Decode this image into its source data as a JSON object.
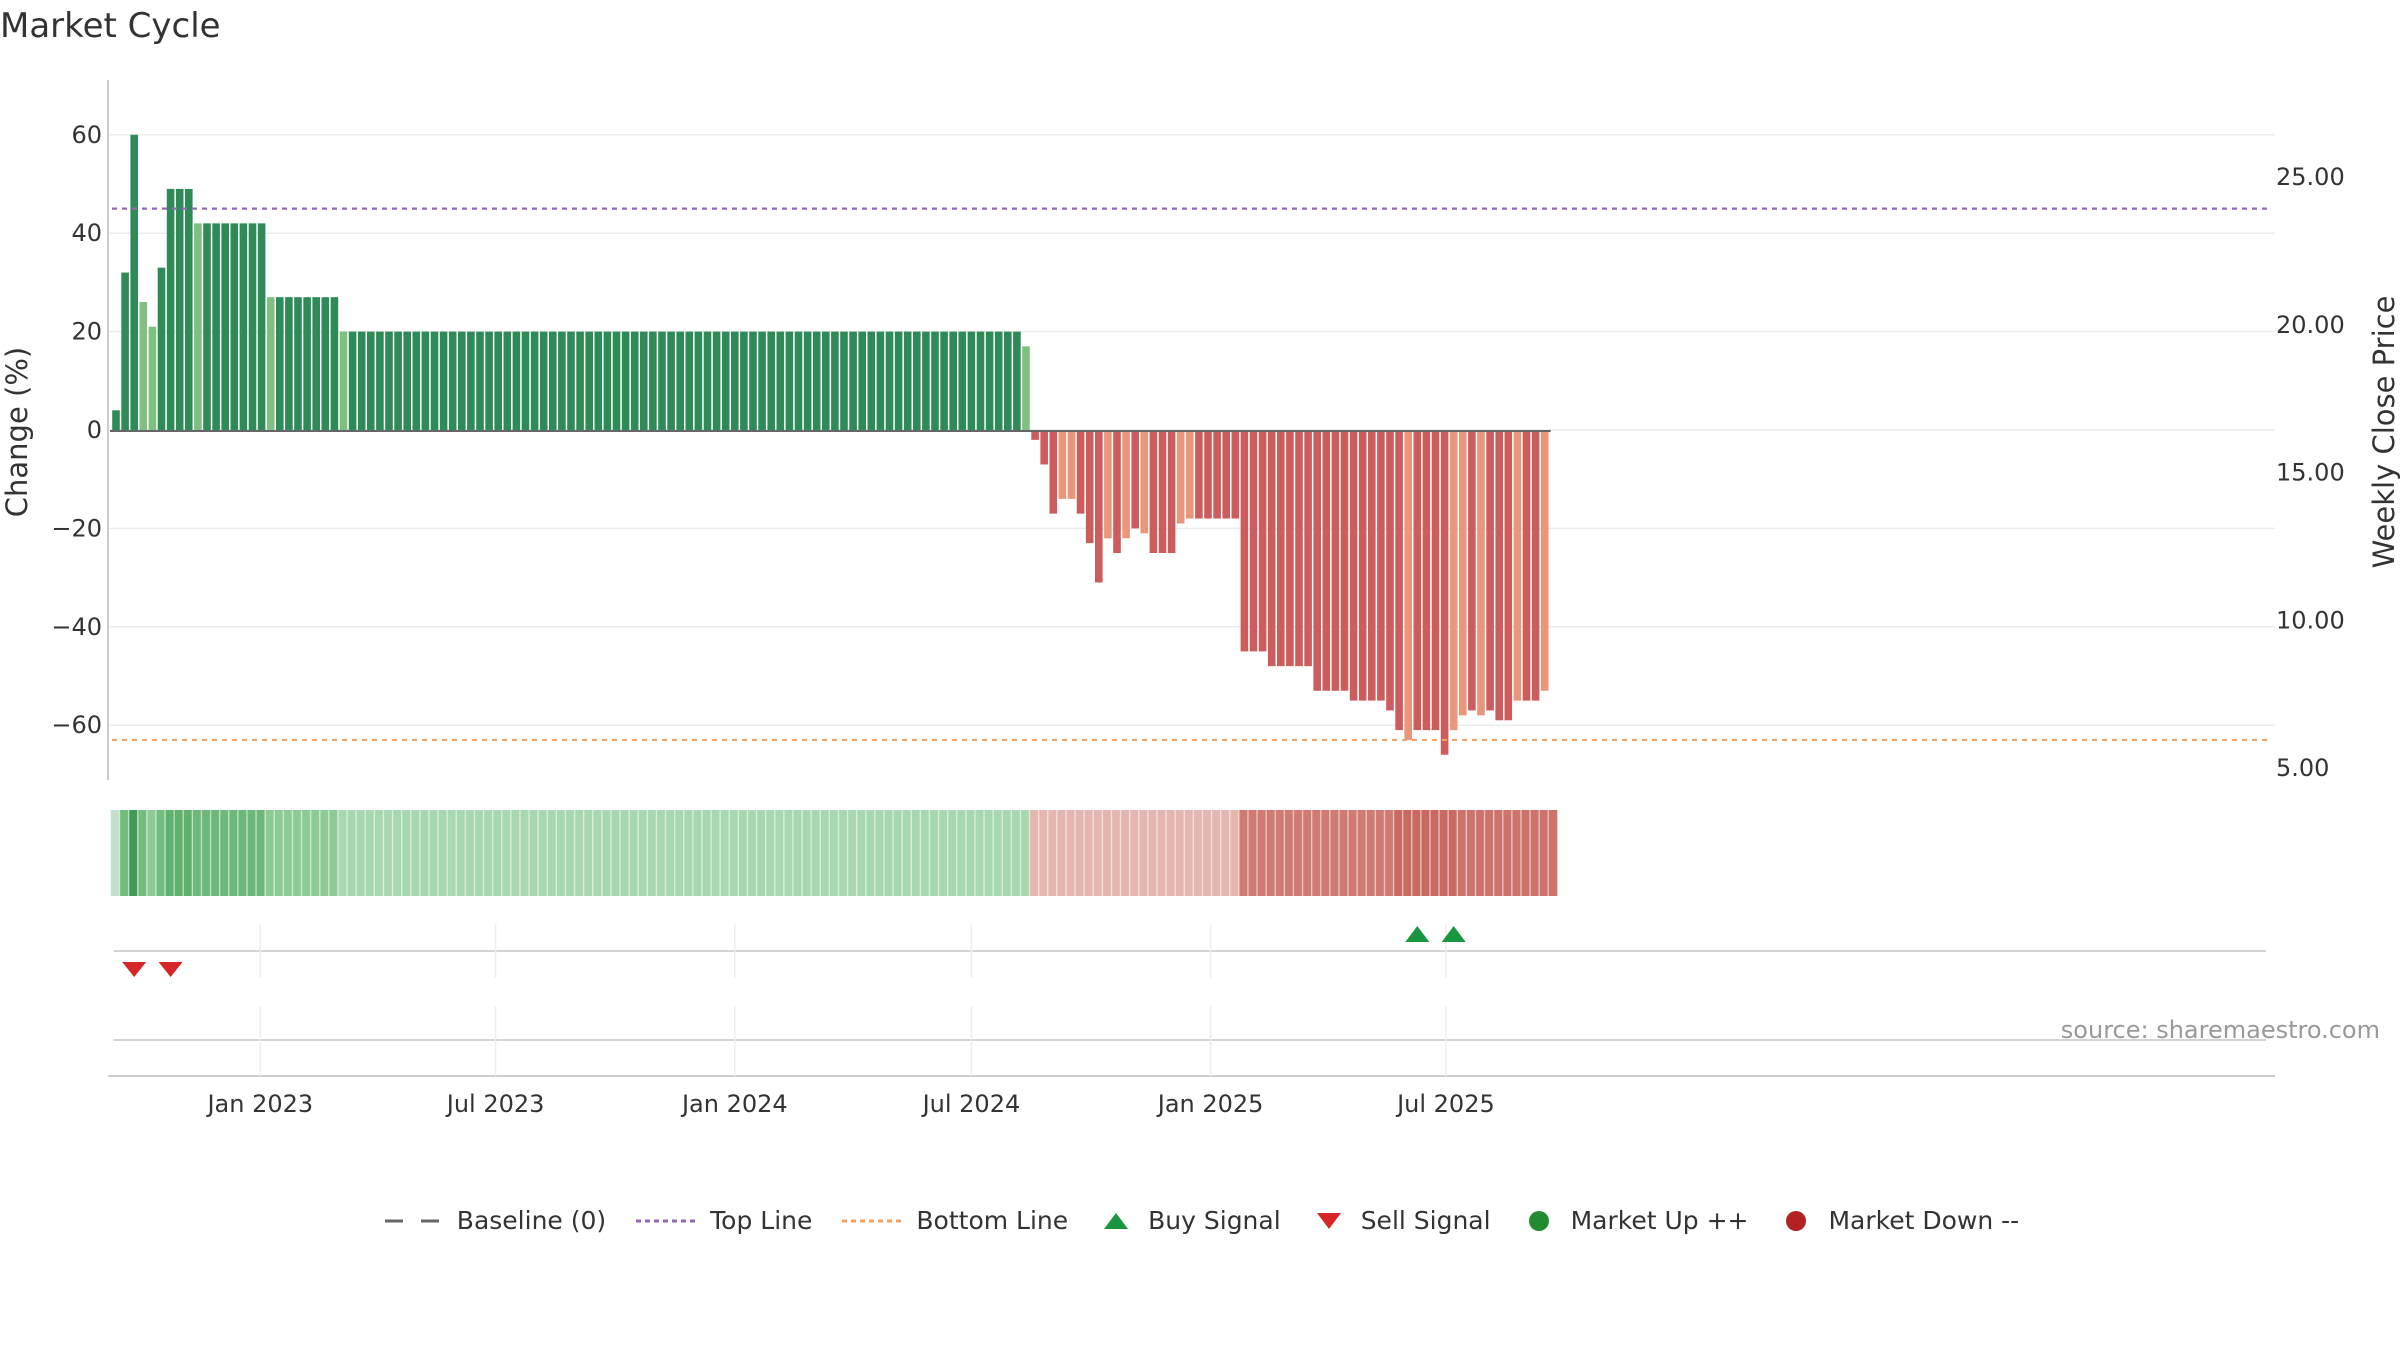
{
  "chart_data": {
    "type": "bar",
    "title": "Market Cycle",
    "ylabel_left": "Change (%)",
    "ylabel_right": "Weekly Close Price",
    "ylim": [
      -72,
      72
    ],
    "yticks_left": [
      {
        "v": 60,
        "label": "60"
      },
      {
        "v": 40,
        "label": "40"
      },
      {
        "v": 20,
        "label": "20"
      },
      {
        "v": 0,
        "label": "0"
      },
      {
        "v": -20,
        "label": "−20"
      },
      {
        "v": -40,
        "label": "−40"
      },
      {
        "v": -60,
        "label": "−60"
      }
    ],
    "ylim_right": [
      3.5,
      28.5
    ],
    "yticks_right": [
      {
        "v": 25,
        "label": "25.00"
      },
      {
        "v": 20,
        "label": "20.00"
      },
      {
        "v": 15,
        "label": "15.00"
      },
      {
        "v": 10,
        "label": "10.00"
      },
      {
        "v": 5,
        "label": "5.00"
      }
    ],
    "top_line": 45,
    "bottom_line": -63,
    "x_start": "2022-09-12",
    "x_end": "2025-09-08",
    "xticks": [
      {
        "date": "2023-01-01",
        "label": "Jan 2023"
      },
      {
        "date": "2023-07-01",
        "label": "Jul 2023"
      },
      {
        "date": "2024-01-01",
        "label": "Jan 2024"
      },
      {
        "date": "2024-07-01",
        "label": "Jul 2024"
      },
      {
        "date": "2025-01-01",
        "label": "Jan 2025"
      },
      {
        "date": "2025-07-01",
        "label": "Jul 2025"
      }
    ],
    "start_date": "2022-09-12",
    "values": [
      4,
      32,
      60,
      26,
      21,
      33,
      49,
      49,
      49,
      42,
      42,
      42,
      42,
      42,
      42,
      42,
      42,
      27,
      27,
      27,
      27,
      27,
      27,
      27,
      27,
      20,
      20,
      20,
      20,
      20,
      20,
      20,
      20,
      20,
      20,
      20,
      20,
      20,
      20,
      20,
      20,
      20,
      20,
      20,
      20,
      20,
      20,
      20,
      20,
      20,
      20,
      20,
      20,
      20,
      20,
      20,
      20,
      20,
      20,
      20,
      20,
      20,
      20,
      20,
      20,
      20,
      20,
      20,
      20,
      20,
      20,
      20,
      20,
      20,
      20,
      20,
      20,
      20,
      20,
      20,
      20,
      20,
      20,
      20,
      20,
      20,
      20,
      20,
      20,
      20,
      20,
      20,
      20,
      20,
      20,
      20,
      20,
      20,
      20,
      20,
      17,
      -2,
      -7,
      -17,
      -14,
      -14,
      -17,
      -23,
      -31,
      -22,
      -25,
      -22,
      -20,
      -21,
      -25,
      -25,
      -25,
      -19,
      -18,
      -18,
      -18,
      -18,
      -18,
      -18,
      -45,
      -45,
      -45,
      -48,
      -48,
      -48,
      -48,
      -48,
      -53,
      -53,
      -53,
      -53,
      -55,
      -55,
      -55,
      -55,
      -57,
      -61,
      -63,
      -61,
      -61,
      -61,
      -66,
      -61,
      -58,
      -57,
      -58,
      -57,
      -59,
      -59,
      -55,
      -55,
      -55,
      -53
    ],
    "light_bar_indices": [
      3,
      4,
      9,
      17,
      25,
      100,
      104,
      105,
      109,
      111,
      113,
      117,
      118,
      142,
      147,
      148,
      150,
      154,
      157
    ],
    "regime_bands": [
      {
        "from": 0,
        "to": 1,
        "color": "#c3e1c8"
      },
      {
        "from": 1,
        "to": 2,
        "color": "#72bd7e"
      },
      {
        "from": 2,
        "to": 3,
        "color": "#3e9a55"
      },
      {
        "from": 3,
        "to": 4,
        "color": "#72bd7e"
      },
      {
        "from": 4,
        "to": 5,
        "color": "#8ccb96"
      },
      {
        "from": 5,
        "to": 6,
        "color": "#72bd7e"
      },
      {
        "from": 6,
        "to": 9,
        "color": "#5fb26e"
      },
      {
        "from": 9,
        "to": 17,
        "color": "#6cb87a"
      },
      {
        "from": 17,
        "to": 25,
        "color": "#8ccb96"
      },
      {
        "from": 25,
        "to": 101,
        "color": "#a8d8b0"
      },
      {
        "from": 101,
        "to": 124,
        "color": "#e3b7b0"
      },
      {
        "from": 124,
        "to": 141,
        "color": "#cf7a72"
      },
      {
        "from": 141,
        "to": 148,
        "color": "#c86a62"
      },
      {
        "from": 148,
        "to": 159,
        "color": "#cc746c"
      }
    ],
    "buy_signals": [
      "2025-06-09",
      "2025-07-07"
    ],
    "sell_signals": [
      "2022-09-26",
      "2022-10-24"
    ],
    "legend": [
      {
        "key": "baseline",
        "label": "Baseline (0)",
        "color": "#666666"
      },
      {
        "key": "top",
        "label": "Top Line",
        "color": "#9467bd"
      },
      {
        "key": "bottom",
        "label": "Bottom Line",
        "color": "#f4a261"
      },
      {
        "key": "buy",
        "label": "Buy Signal",
        "color": "#1a9641"
      },
      {
        "key": "sell",
        "label": "Sell Signal",
        "color": "#d62728"
      },
      {
        "key": "up",
        "label": "Market Up ++",
        "color": "#238b2f"
      },
      {
        "key": "down",
        "label": "Market Down --",
        "color": "#b22222"
      }
    ],
    "source": "source: sharemaestro.com",
    "colors": {
      "up_dark": "#2e8b57",
      "up_light": "#7fbf7f",
      "down_dark": "#cd5c5c",
      "down_light": "#e9967a"
    }
  }
}
